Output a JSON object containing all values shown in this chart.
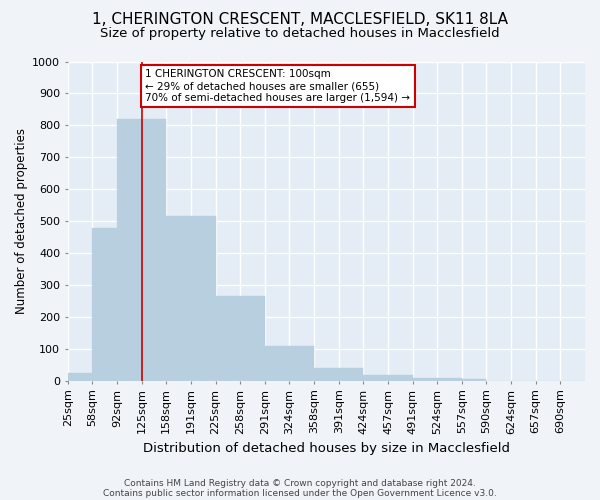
{
  "title1": "1, CHERINGTON CRESCENT, MACCLESFIELD, SK11 8LA",
  "title2": "Size of property relative to detached houses in Macclesfield",
  "xlabel": "Distribution of detached houses by size in Macclesfield",
  "ylabel": "Number of detached properties",
  "categories": [
    "25sqm",
    "58sqm",
    "92sqm",
    "125sqm",
    "158sqm",
    "191sqm",
    "225sqm",
    "258sqm",
    "291sqm",
    "324sqm",
    "358sqm",
    "391sqm",
    "424sqm",
    "457sqm",
    "491sqm",
    "524sqm",
    "557sqm",
    "590sqm",
    "624sqm",
    "657sqm",
    "690sqm"
  ],
  "values": [
    25,
    480,
    820,
    820,
    515,
    515,
    265,
    265,
    110,
    110,
    40,
    40,
    18,
    18,
    8,
    8,
    5,
    0,
    0,
    0,
    0
  ],
  "bar_color": "#b8cfdf",
  "bar_edge_color": "#b8cfdf",
  "vline_color": "#cc0000",
  "annotation_text": "1 CHERINGTON CRESCENT: 100sqm\n← 29% of detached houses are smaller (655)\n70% of semi-detached houses are larger (1,594) →",
  "annotation_box_color": "#ffffff",
  "annotation_box_edge": "#cc0000",
  "footnote1": "Contains HM Land Registry data © Crown copyright and database right 2024.",
  "footnote2": "Contains public sector information licensed under the Open Government Licence v3.0.",
  "ylim": [
    0,
    1000
  ],
  "bg_color": "#f0f4f8",
  "plot_bg_color": "#e4edf5",
  "grid_color": "#ffffff",
  "title1_fontsize": 11,
  "title2_fontsize": 9.5,
  "xlabel_fontsize": 9.5,
  "ylabel_fontsize": 8.5,
  "tick_fontsize": 8,
  "footnote_fontsize": 6.5
}
